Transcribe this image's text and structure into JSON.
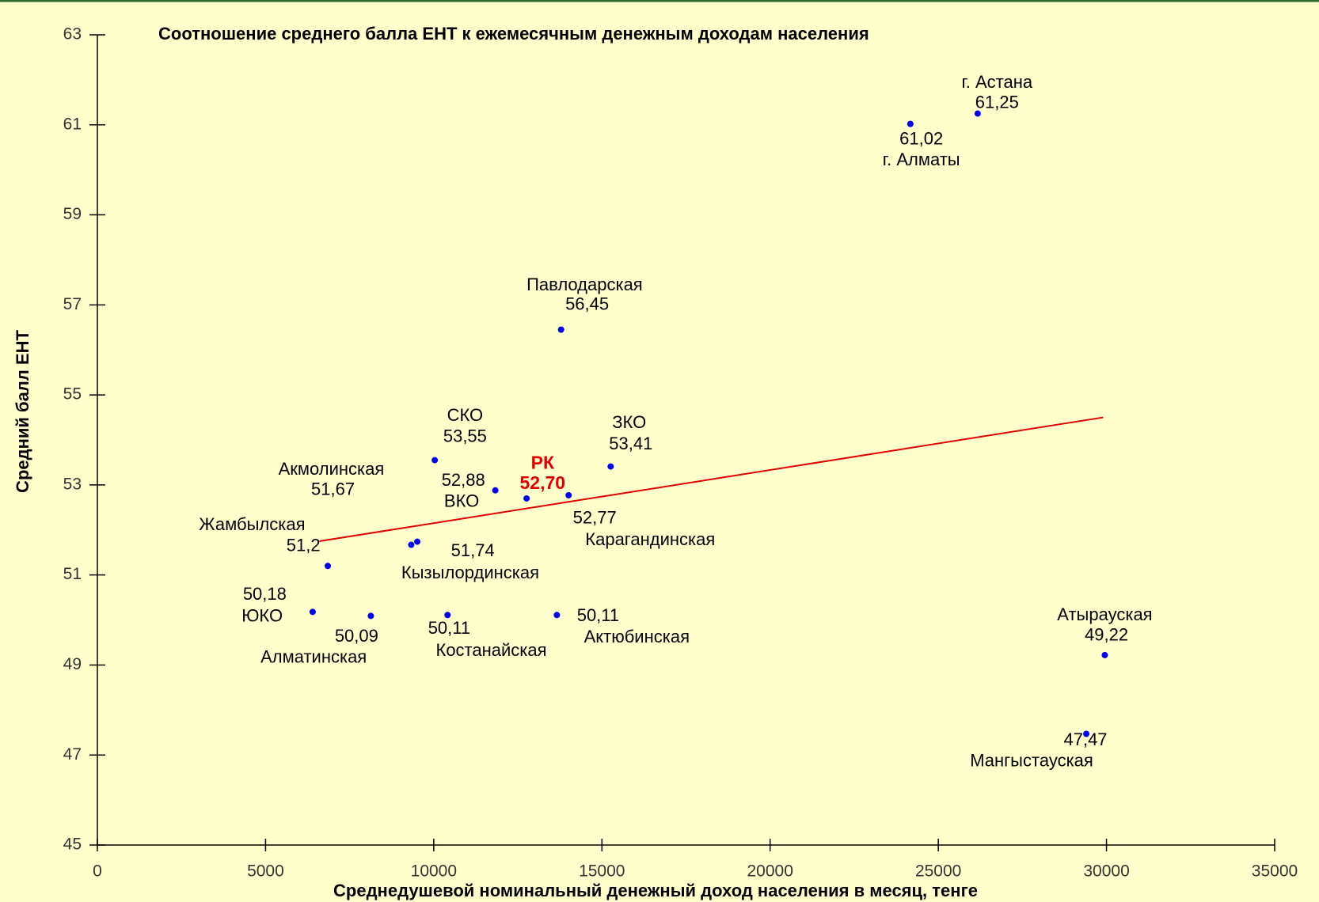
{
  "chart_data": {
    "type": "scatter",
    "title": "Соотношение среднего балла ЕНТ к ежемесячным денежным доходам населения",
    "x_label": "Среднедушевой номинальный денежный доход населения в месяц, тенге",
    "y_label": "Средний балл ЕНТ",
    "xlim": [
      0,
      35000
    ],
    "ylim": [
      45,
      63
    ],
    "xticks": [
      0,
      5000,
      10000,
      15000,
      20000,
      25000,
      30000,
      35000
    ],
    "yticks": [
      45,
      47,
      49,
      51,
      53,
      55,
      57,
      59,
      61,
      63
    ],
    "color": "#0000ee",
    "series": [
      {
        "names": [
          "г. Астана",
          "г. Алматы",
          "Павлодарская",
          "СКО",
          "ЗКО",
          "ВКО",
          "Карагандинская",
          "Акмолинская",
          "Кызылординская",
          "Жамбылская",
          "ЮКО",
          "Алматинская",
          "Костанайская",
          "Актюбинская",
          "Атырауская",
          "Мангыстауская"
        ],
        "x": [
          26170,
          24170,
          13785,
          10030,
          15260,
          11830,
          14010,
          9330,
          9510,
          6850,
          6400,
          8130,
          10410,
          13660,
          29950,
          29400
        ],
        "values": [
          61.25,
          61.02,
          56.45,
          53.55,
          53.41,
          52.88,
          52.77,
          51.67,
          51.74,
          51.2,
          50.18,
          50.09,
          50.11,
          50.11,
          49.22,
          47.47
        ],
        "value_labels": [
          "61,25",
          "61,02",
          "56,45",
          "53,55",
          "53,41",
          "52,88",
          "52,77",
          "51,67",
          "51,74",
          "51,2",
          "50,18",
          "50,09",
          "50,11",
          "50,11",
          "49,22",
          "47,47"
        ],
        "label_color": "#000000"
      },
      {
        "names": [
          "РК"
        ],
        "x": [
          12760
        ],
        "values": [
          52.7
        ],
        "value_labels": [
          "52,70"
        ],
        "label_color": "#e00000"
      }
    ],
    "trendline": {
      "x": [
        6600,
        29900
      ],
      "y": [
        51.75,
        54.5
      ],
      "color": "#e00000"
    }
  }
}
